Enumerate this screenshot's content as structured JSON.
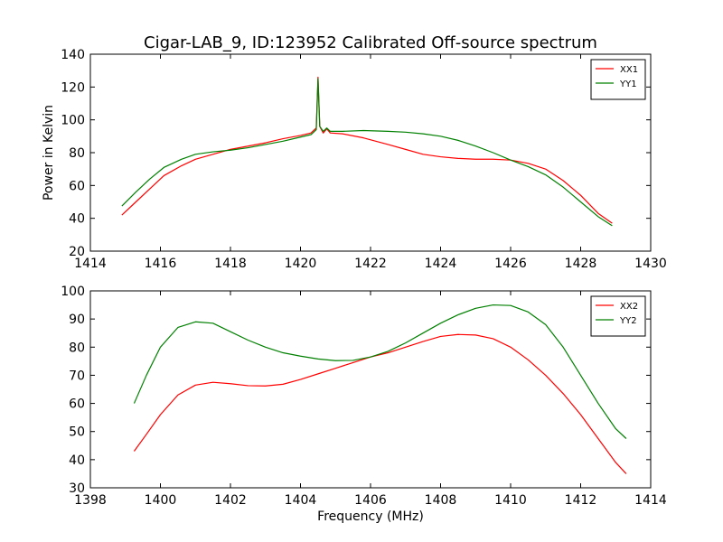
{
  "title": "Cigar-LAB_9, ID:123952 Calibrated Off-source spectrum",
  "chart_data": [
    {
      "type": "line",
      "xlabel": "",
      "ylabel": "Power in Kelvin",
      "xlim": [
        1414,
        1430
      ],
      "ylim": [
        20,
        140
      ],
      "xticks": [
        1414,
        1416,
        1418,
        1420,
        1422,
        1424,
        1426,
        1428,
        1430
      ],
      "yticks": [
        20,
        40,
        60,
        80,
        100,
        120,
        140
      ],
      "legend": "top-right",
      "series": [
        {
          "name": "XX1",
          "color": "#ff0000",
          "points": [
            [
              1414.9,
              42
            ],
            [
              1415.3,
              50
            ],
            [
              1415.7,
              58
            ],
            [
              1416.1,
              66
            ],
            [
              1416.6,
              72
            ],
            [
              1417.0,
              76
            ],
            [
              1417.5,
              79
            ],
            [
              1418.0,
              82
            ],
            [
              1418.5,
              84
            ],
            [
              1419.0,
              86
            ],
            [
              1419.5,
              88.5
            ],
            [
              1420.0,
              90.5
            ],
            [
              1420.3,
              92
            ],
            [
              1420.45,
              95
            ],
            [
              1420.5,
              126
            ],
            [
              1420.55,
              96
            ],
            [
              1420.65,
              92
            ],
            [
              1420.75,
              94.5
            ],
            [
              1420.85,
              92
            ],
            [
              1421.2,
              91.5
            ],
            [
              1421.8,
              89
            ],
            [
              1422.5,
              85
            ],
            [
              1423.0,
              82
            ],
            [
              1423.5,
              79
            ],
            [
              1424.0,
              77.5
            ],
            [
              1424.5,
              76.5
            ],
            [
              1425.0,
              76
            ],
            [
              1425.5,
              76
            ],
            [
              1426.0,
              75.5
            ],
            [
              1426.5,
              73.5
            ],
            [
              1427.0,
              70
            ],
            [
              1427.5,
              63
            ],
            [
              1428.0,
              54
            ],
            [
              1428.5,
              43
            ],
            [
              1428.9,
              37
            ]
          ]
        },
        {
          "name": "YY1",
          "color": "#008000",
          "points": [
            [
              1414.9,
              47.5
            ],
            [
              1415.3,
              56
            ],
            [
              1415.7,
              64
            ],
            [
              1416.1,
              71
            ],
            [
              1416.6,
              76
            ],
            [
              1417.0,
              79
            ],
            [
              1417.5,
              80.5
            ],
            [
              1418.0,
              81.5
            ],
            [
              1418.5,
              83
            ],
            [
              1419.0,
              85
            ],
            [
              1419.5,
              87
            ],
            [
              1420.0,
              89.5
            ],
            [
              1420.3,
              91
            ],
            [
              1420.45,
              94
            ],
            [
              1420.5,
              125
            ],
            [
              1420.55,
              96
            ],
            [
              1420.65,
              93
            ],
            [
              1420.75,
              95
            ],
            [
              1420.85,
              93
            ],
            [
              1421.2,
              93
            ],
            [
              1421.8,
              93.5
            ],
            [
              1422.5,
              93
            ],
            [
              1423.0,
              92.5
            ],
            [
              1423.5,
              91.5
            ],
            [
              1424.0,
              90
            ],
            [
              1424.5,
              87.5
            ],
            [
              1425.0,
              84
            ],
            [
              1425.5,
              80
            ],
            [
              1426.0,
              75.5
            ],
            [
              1426.5,
              71.5
            ],
            [
              1427.0,
              66.5
            ],
            [
              1427.5,
              59
            ],
            [
              1428.0,
              50
            ],
            [
              1428.5,
              41
            ],
            [
              1428.9,
              35.5
            ]
          ]
        }
      ]
    },
    {
      "type": "line",
      "xlabel": "Frequency (MHz)",
      "ylabel": "",
      "xlim": [
        1398,
        1414
      ],
      "ylim": [
        30,
        100
      ],
      "xticks": [
        1398,
        1400,
        1402,
        1404,
        1406,
        1408,
        1410,
        1412,
        1414
      ],
      "yticks": [
        30,
        40,
        50,
        60,
        70,
        80,
        90,
        100
      ],
      "legend": "top-right",
      "series": [
        {
          "name": "XX2",
          "color": "#ff0000",
          "points": [
            [
              1399.25,
              43
            ],
            [
              1399.6,
              49
            ],
            [
              1400.0,
              56
            ],
            [
              1400.5,
              63
            ],
            [
              1401.0,
              66.5
            ],
            [
              1401.5,
              67.5
            ],
            [
              1402.0,
              67
            ],
            [
              1402.5,
              66.3
            ],
            [
              1403.0,
              66.2
            ],
            [
              1403.5,
              66.8
            ],
            [
              1404.0,
              68.5
            ],
            [
              1404.5,
              70.5
            ],
            [
              1405.0,
              72.5
            ],
            [
              1405.5,
              74.5
            ],
            [
              1406.0,
              76.5
            ],
            [
              1406.5,
              78
            ],
            [
              1407.0,
              80
            ],
            [
              1407.5,
              82
            ],
            [
              1408.0,
              83.8
            ],
            [
              1408.5,
              84.5
            ],
            [
              1409.0,
              84.3
            ],
            [
              1409.5,
              83
            ],
            [
              1410.0,
              80
            ],
            [
              1410.5,
              75.5
            ],
            [
              1411.0,
              70
            ],
            [
              1411.5,
              63.5
            ],
            [
              1412.0,
              56
            ],
            [
              1412.5,
              47.5
            ],
            [
              1413.0,
              39
            ],
            [
              1413.3,
              35
            ]
          ]
        },
        {
          "name": "YY2",
          "color": "#008000",
          "points": [
            [
              1399.25,
              60
            ],
            [
              1399.6,
              70
            ],
            [
              1400.0,
              80
            ],
            [
              1400.5,
              87
            ],
            [
              1401.0,
              89
            ],
            [
              1401.5,
              88.5
            ],
            [
              1402.0,
              85.5
            ],
            [
              1402.5,
              82.5
            ],
            [
              1403.0,
              80
            ],
            [
              1403.5,
              78
            ],
            [
              1404.0,
              76.8
            ],
            [
              1404.5,
              75.8
            ],
            [
              1405.0,
              75.2
            ],
            [
              1405.5,
              75.3
            ],
            [
              1406.0,
              76.5
            ],
            [
              1406.5,
              78.5
            ],
            [
              1407.0,
              81.5
            ],
            [
              1407.5,
              85
            ],
            [
              1408.0,
              88.5
            ],
            [
              1408.5,
              91.5
            ],
            [
              1409.0,
              93.8
            ],
            [
              1409.5,
              95
            ],
            [
              1410.0,
              94.8
            ],
            [
              1410.5,
              92.5
            ],
            [
              1411.0,
              88
            ],
            [
              1411.5,
              80
            ],
            [
              1412.0,
              70
            ],
            [
              1412.5,
              60
            ],
            [
              1413.0,
              51
            ],
            [
              1413.3,
              47.5
            ]
          ]
        }
      ]
    }
  ]
}
